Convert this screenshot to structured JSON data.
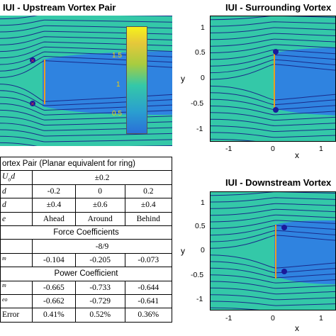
{
  "figure": {
    "panels": {
      "upstream": {
        "title": "IUI - Upstream Vortex Pair"
      },
      "surrounding": {
        "title": "IUI - Surrounding Vortex",
        "yticks": [
          "1",
          "0.5",
          "0",
          "-0.5",
          "-1"
        ],
        "xticks": [
          "-1",
          "0",
          "1"
        ],
        "xlabel": "x",
        "ylabel": "y"
      },
      "downstream": {
        "title": "IUI - Downstream Vortex",
        "yticks": [
          "1",
          "0.5",
          "0",
          "-0.5",
          "-1"
        ],
        "xticks": [
          "-1",
          "0",
          "1"
        ],
        "xlabel": "x",
        "ylabel": "y"
      }
    },
    "colorbar": {
      "ticks": [
        "1.5",
        "1",
        "0.5"
      ],
      "colors": {
        "high": "#f6f21a",
        "mid": "#2cb8a8",
        "low": "#2a6fd8"
      }
    },
    "colors": {
      "field": "#34c8a8",
      "streamline": "#1a2a8a",
      "wake": "#2f7fe3",
      "plate": "#e8a020"
    }
  },
  "table": {
    "caption": "ortex Pair (Planar equivalent for ring)",
    "rows": [
      {
        "label_main": "U",
        "label_sub": "o",
        "label_tail": "d",
        "merged": "±0.2"
      },
      {
        "label_main": "d",
        "values": [
          "-0.2",
          "0",
          "0.2"
        ]
      },
      {
        "label_main": "d",
        "values": [
          "±0.4",
          "±0.6",
          "±0.4"
        ]
      },
      {
        "label_main": "e",
        "values": [
          "Ahead",
          "Around",
          "Behind"
        ]
      }
    ],
    "section_force": "Force Coefficients",
    "force_rows": [
      {
        "label_main": "",
        "merged": "-8/9"
      },
      {
        "label_main": "",
        "label_sup": "m",
        "values": [
          "-0.104",
          "-0.205",
          "-0.073"
        ]
      }
    ],
    "section_power": "Power Coefficient",
    "power_rows": [
      {
        "label_main": "",
        "label_sup": "m",
        "values": [
          "-0.665",
          "-0.733",
          "-0.644"
        ]
      },
      {
        "label_main": "",
        "label_sup": "eo",
        "values": [
          "-0.662",
          "-0.729",
          "-0.641"
        ]
      },
      {
        "label_main": "Error",
        "values": [
          "0.41%",
          "0.52%",
          "0.36%"
        ]
      }
    ]
  }
}
